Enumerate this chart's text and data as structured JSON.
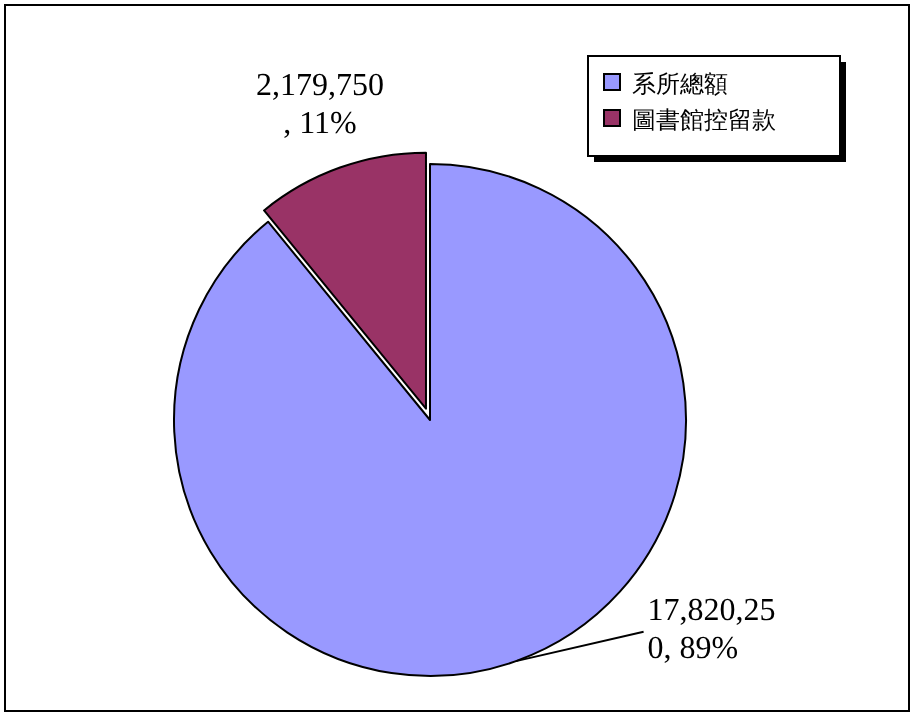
{
  "chart_data": {
    "type": "pie",
    "categories": [
      "系所總額",
      "圖書館控留款"
    ],
    "values": [
      17820250,
      2179750
    ],
    "colors": [
      "#9999ff",
      "#993366"
    ],
    "value_labels": [
      "17,820,250, 89%",
      "2,179,750, 11%"
    ],
    "legend": "top right"
  }
}
